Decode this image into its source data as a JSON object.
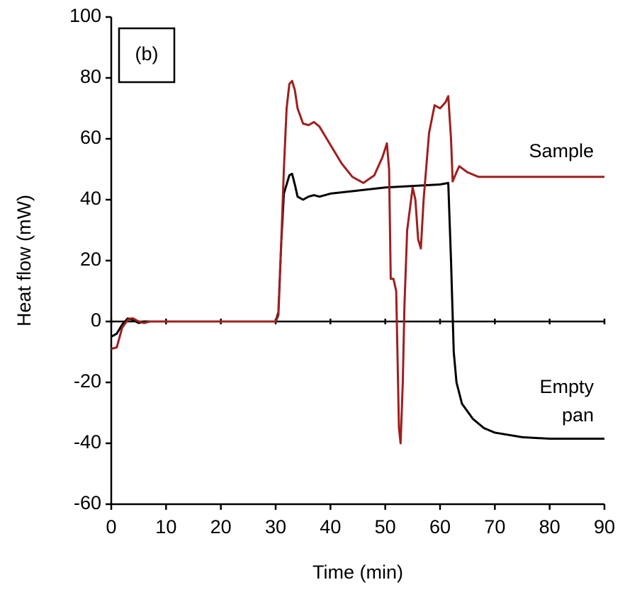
{
  "chart_data": {
    "type": "line",
    "x_label": "Time (min)",
    "y_label": "Heat flow (mW)",
    "annotations": {
      "panel": "(b)",
      "sample": "Sample",
      "empty": [
        "Empty",
        "pan"
      ]
    },
    "xlim": [
      0,
      90
    ],
    "xticks": [
      0,
      10,
      20,
      30,
      40,
      50,
      60,
      70,
      80,
      90
    ],
    "ylim": [
      -60,
      100
    ],
    "yticks": [
      -60,
      -40,
      -20,
      0,
      20,
      40,
      60,
      80,
      100
    ],
    "series": [
      {
        "name": "Empty pan",
        "color": "#000000",
        "x": [
          0,
          1,
          2,
          3,
          4,
          5,
          6,
          30,
          30.5,
          31,
          31.5,
          32.5,
          33,
          33.5,
          34,
          35,
          36,
          37,
          38,
          40,
          45,
          50,
          55,
          60,
          61.5,
          62,
          62.5,
          63,
          64,
          66,
          68,
          70,
          75,
          80,
          90
        ],
        "values": [
          -5,
          -4,
          -1,
          1,
          0.5,
          -0.5,
          0,
          0,
          3,
          25,
          42,
          48,
          48.5,
          45,
          41,
          40,
          41,
          41.5,
          41,
          42,
          43,
          44,
          44.5,
          45,
          45.5,
          20,
          -10,
          -20,
          -27,
          -32,
          -35,
          -36.5,
          -38,
          -38.5,
          -38.5
        ]
      },
      {
        "name": "Sample",
        "color": "#a01e1e",
        "x": [
          0,
          1,
          2,
          3,
          3.5,
          4,
          5,
          6,
          7,
          9,
          30,
          30.5,
          31,
          31.5,
          32,
          32.5,
          33,
          33.5,
          34,
          35,
          36,
          37,
          38,
          40,
          42,
          44,
          46,
          48,
          49.5,
          50.3,
          50.7,
          51,
          51.5,
          52,
          52.5,
          52.8,
          53.2,
          53.5,
          54,
          55,
          55.5,
          56,
          56.5,
          57,
          58,
          59,
          60,
          61,
          61.5,
          62,
          62.3,
          63,
          63.5,
          65,
          67,
          70,
          90
        ],
        "values": [
          -9,
          -8.5,
          -2,
          0.5,
          1,
          1,
          0,
          -0.5,
          0,
          0,
          0,
          2,
          25,
          50,
          70,
          78,
          79,
          76,
          70,
          65,
          64.5,
          65.5,
          64,
          58,
          52,
          47.5,
          45.5,
          48,
          54,
          58.5,
          50,
          14,
          14,
          10,
          -35,
          -40,
          -20,
          5,
          30,
          44,
          40,
          27,
          24,
          40,
          62,
          71,
          70,
          72,
          74,
          60,
          46,
          49,
          51,
          49,
          47.5,
          47.5,
          47.5
        ]
      }
    ]
  }
}
